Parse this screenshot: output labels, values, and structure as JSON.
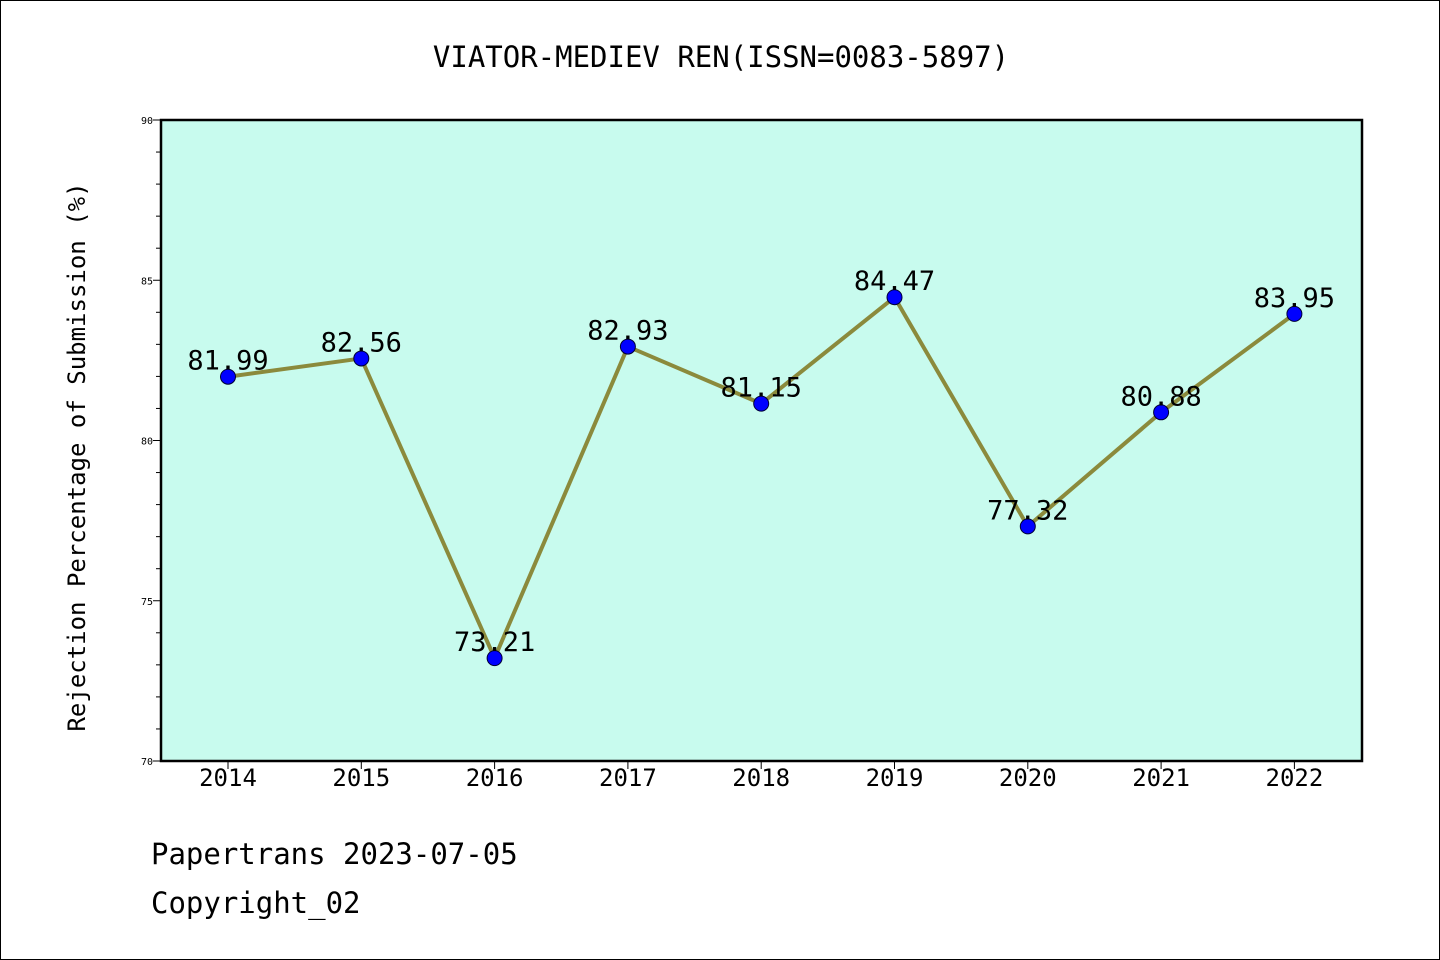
{
  "chart_data": {
    "type": "line",
    "title": "VIATOR-MEDIEV REN(ISSN=0083-5897)",
    "xlabel": "",
    "ylabel": "Rejection Percentage of Submission (%)",
    "categories": [
      "2014",
      "2015",
      "2016",
      "2017",
      "2018",
      "2019",
      "2020",
      "2021",
      "2022"
    ],
    "series": [
      {
        "values": [
          81.99,
          82.56,
          73.21,
          82.93,
          81.15,
          84.47,
          77.32,
          80.88,
          83.95
        ],
        "labels": [
          "81.99",
          "82.56",
          "73.21",
          "82.93",
          "81.15",
          "84.47",
          "77.32",
          "80.88",
          "83.95"
        ],
        "line_color": "#8b8a3c",
        "marker_color": "#0000ff"
      }
    ],
    "yticks": [
      "70",
      "75",
      "80",
      "85",
      "90"
    ],
    "ylim": [
      70,
      90
    ],
    "plot_background": "#c8fbee",
    "grid": false,
    "legend": "none"
  },
  "footer": {
    "line1": "Papertrans 2023-07-05",
    "line2": "Copyright_02"
  }
}
